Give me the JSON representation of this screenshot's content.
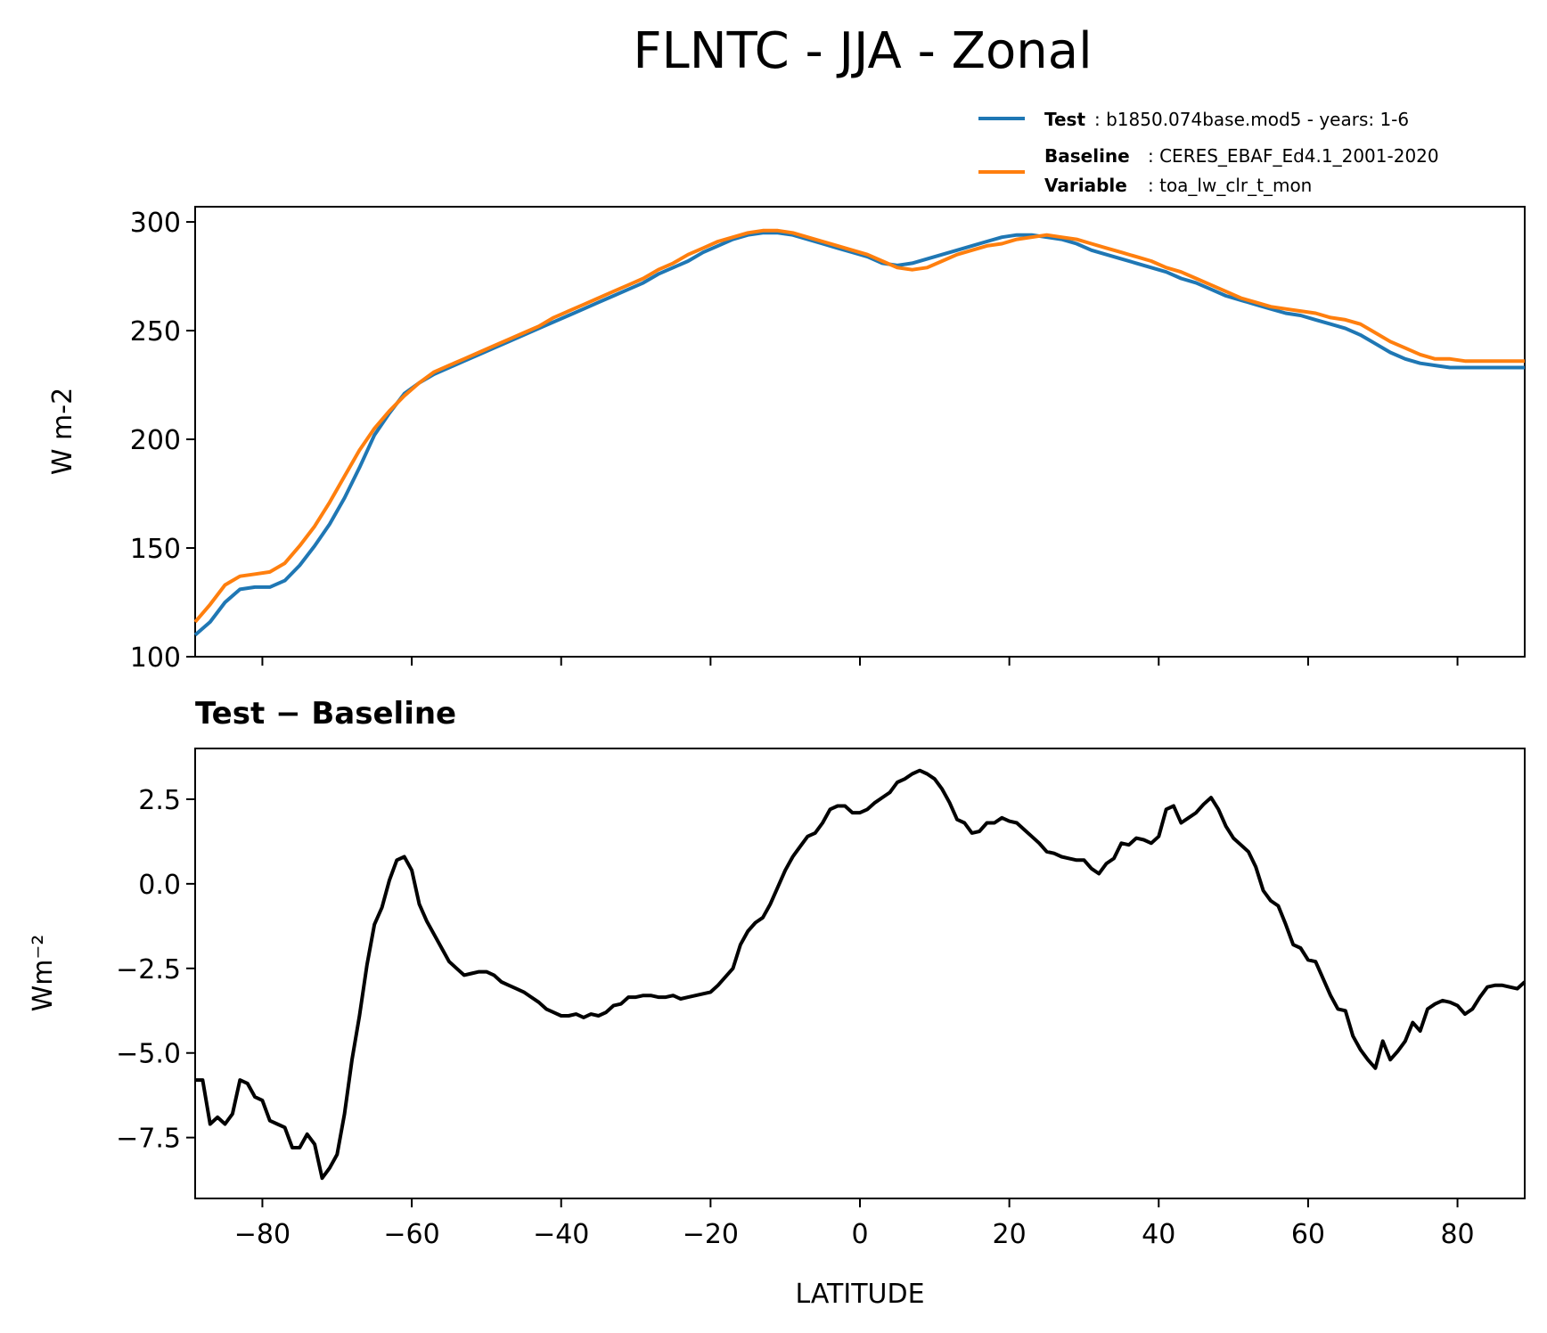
{
  "title": "FLNTC - JJA - Zonal",
  "legend": {
    "test_key": "Test",
    "test_value": ": b1850.074base.mod5 - years: 1-6",
    "baseline_key": "Baseline",
    "baseline_value": ": CERES_EBAF_Ed4.1_2001-2020",
    "variable_key": "Variable",
    "variable_value": ": toa_lw_clr_t_mon"
  },
  "colors": {
    "test": "#1f77b4",
    "baseline": "#ff7f0e",
    "diff": "#000000"
  },
  "chart_data": [
    {
      "type": "line",
      "ylabel": "W m-2",
      "xlim": [
        -89,
        89
      ],
      "ylim": [
        100,
        307
      ],
      "yticks": [
        100,
        150,
        200,
        250,
        300
      ],
      "legend_placement": "top-right",
      "grid": false,
      "series": [
        {
          "name": "Test",
          "x": [
            -89,
            -87,
            -85,
            -83,
            -81,
            -79,
            -77,
            -75,
            -73,
            -71,
            -69,
            -67,
            -65,
            -63,
            -61,
            -59,
            -57,
            -55,
            -53,
            -51,
            -49,
            -47,
            -45,
            -43,
            -41,
            -39,
            -37,
            -35,
            -33,
            -31,
            -29,
            -27,
            -25,
            -23,
            -21,
            -19,
            -17,
            -15,
            -13,
            -11,
            -9,
            -7,
            -5,
            -3,
            -1,
            1,
            3,
            5,
            7,
            9,
            11,
            13,
            15,
            17,
            19,
            21,
            23,
            25,
            27,
            29,
            31,
            33,
            35,
            37,
            39,
            41,
            43,
            45,
            47,
            49,
            51,
            53,
            55,
            57,
            59,
            61,
            63,
            65,
            67,
            69,
            71,
            73,
            75,
            77,
            79,
            81,
            83,
            85,
            87,
            89
          ],
          "y": [
            110,
            116,
            125,
            131,
            132,
            132,
            135,
            142,
            151,
            161,
            173,
            187,
            202,
            212,
            221,
            226,
            230,
            233,
            236,
            239,
            242,
            245,
            248,
            251,
            254,
            257,
            260,
            263,
            266,
            269,
            272,
            276,
            279,
            282,
            286,
            289,
            292,
            294,
            295,
            295,
            294,
            292,
            290,
            288,
            286,
            284,
            281,
            280,
            281,
            283,
            285,
            287,
            289,
            291,
            293,
            294,
            294,
            293,
            292,
            290,
            287,
            285,
            283,
            281,
            279,
            277,
            274,
            272,
            269,
            266,
            264,
            262,
            260,
            258,
            257,
            255,
            253,
            251,
            248,
            244,
            240,
            237,
            235,
            234,
            233,
            233,
            233,
            233,
            233,
            233
          ]
        },
        {
          "name": "Baseline",
          "x": [
            -89,
            -87,
            -85,
            -83,
            -81,
            -79,
            -77,
            -75,
            -73,
            -71,
            -69,
            -67,
            -65,
            -63,
            -61,
            -59,
            -57,
            -55,
            -53,
            -51,
            -49,
            -47,
            -45,
            -43,
            -41,
            -39,
            -37,
            -35,
            -33,
            -31,
            -29,
            -27,
            -25,
            -23,
            -21,
            -19,
            -17,
            -15,
            -13,
            -11,
            -9,
            -7,
            -5,
            -3,
            -1,
            1,
            3,
            5,
            7,
            9,
            11,
            13,
            15,
            17,
            19,
            21,
            23,
            25,
            27,
            29,
            31,
            33,
            35,
            37,
            39,
            41,
            43,
            45,
            47,
            49,
            51,
            53,
            55,
            57,
            59,
            61,
            63,
            65,
            67,
            69,
            71,
            73,
            75,
            77,
            79,
            81,
            83,
            85,
            87,
            89
          ],
          "y": [
            116,
            124,
            133,
            137,
            138,
            139,
            143,
            151,
            160,
            171,
            183,
            195,
            205,
            213,
            220,
            226,
            231,
            234,
            237,
            240,
            243,
            246,
            249,
            252,
            256,
            259,
            262,
            265,
            268,
            271,
            274,
            278,
            281,
            285,
            288,
            291,
            293,
            295,
            296,
            296,
            295,
            293,
            291,
            289,
            287,
            285,
            282,
            279,
            278,
            279,
            282,
            285,
            287,
            289,
            290,
            292,
            293,
            294,
            293,
            292,
            290,
            288,
            286,
            284,
            282,
            279,
            277,
            274,
            271,
            268,
            265,
            263,
            261,
            260,
            259,
            258,
            256,
            255,
            253,
            249,
            245,
            242,
            239,
            237,
            237,
            236,
            236,
            236,
            236,
            236
          ]
        }
      ]
    },
    {
      "type": "line",
      "title": "Test − Baseline",
      "ylabel": "Wm⁻²",
      "xlabel": "LATITUDE",
      "xlim": [
        -89,
        89
      ],
      "ylim": [
        -9.3,
        4.0
      ],
      "yticks": [
        -7.5,
        -5.0,
        -2.5,
        0.0,
        2.5
      ],
      "ytick_labels": [
        "−7.5",
        "−5.0",
        "−2.5",
        "0.0",
        "2.5"
      ],
      "xticks": [
        -80,
        -60,
        -40,
        -20,
        0,
        20,
        40,
        60,
        80
      ],
      "xtick_labels": [
        "−80",
        "−60",
        "−40",
        "−20",
        "0",
        "20",
        "40",
        "60",
        "80"
      ],
      "grid": false,
      "series": [
        {
          "x": [
            -89,
            -88,
            -87,
            -86,
            -85,
            -84,
            -83,
            -82,
            -81,
            -80,
            -79,
            -78,
            -77,
            -76,
            -75,
            -74,
            -73,
            -72,
            -71,
            -70,
            -69,
            -68,
            -67,
            -66,
            -65,
            -64,
            -63,
            -62,
            -61,
            -60,
            -59,
            -58,
            -57,
            -56,
            -55,
            -54,
            -53,
            -52,
            -51,
            -50,
            -49,
            -48,
            -47,
            -46,
            -45,
            -44,
            -43,
            -42,
            -41,
            -40,
            -39,
            -38,
            -37,
            -36,
            -35,
            -34,
            -33,
            -32,
            -31,
            -30,
            -29,
            -28,
            -27,
            -26,
            -25,
            -24,
            -23,
            -22,
            -21,
            -20,
            -19,
            -18,
            -17,
            -16,
            -15,
            -14,
            -13,
            -12,
            -11,
            -10,
            -9,
            -8,
            -7,
            -6,
            -5,
            -4,
            -3,
            -2,
            -1,
            0,
            1,
            2,
            3,
            4,
            5,
            6,
            7,
            8,
            9,
            10,
            11,
            12,
            13,
            14,
            15,
            16,
            17,
            18,
            19,
            20,
            21,
            22,
            23,
            24,
            25,
            26,
            27,
            28,
            29,
            30,
            31,
            32,
            33,
            34,
            35,
            36,
            37,
            38,
            39,
            40,
            41,
            42,
            43,
            44,
            45,
            46,
            47,
            48,
            49,
            50,
            51,
            52,
            53,
            54,
            55,
            56,
            57,
            58,
            59,
            60,
            61,
            62,
            63,
            64,
            65,
            66,
            67,
            68,
            69,
            70,
            71,
            72,
            73,
            74,
            75,
            76,
            77,
            78,
            79,
            80,
            81,
            82,
            83,
            84,
            85,
            86,
            87,
            88,
            89
          ],
          "y": [
            -5.8,
            -5.8,
            -7.1,
            -6.9,
            -7.1,
            -6.8,
            -5.8,
            -5.9,
            -6.3,
            -6.4,
            -7.0,
            -7.1,
            -7.2,
            -7.8,
            -7.8,
            -7.4,
            -7.7,
            -8.7,
            -8.4,
            -8.0,
            -6.8,
            -5.2,
            -3.9,
            -2.4,
            -1.2,
            -0.7,
            0.1,
            0.7,
            0.8,
            0.4,
            -0.6,
            -1.1,
            -1.5,
            -1.9,
            -2.3,
            -2.5,
            -2.7,
            -2.65,
            -2.6,
            -2.6,
            -2.7,
            -2.9,
            -3.0,
            -3.1,
            -3.2,
            -3.35,
            -3.5,
            -3.7,
            -3.8,
            -3.9,
            -3.9,
            -3.85,
            -3.95,
            -3.85,
            -3.9,
            -3.8,
            -3.6,
            -3.55,
            -3.35,
            -3.35,
            -3.3,
            -3.3,
            -3.35,
            -3.35,
            -3.3,
            -3.4,
            -3.35,
            -3.3,
            -3.25,
            -3.2,
            -3.0,
            -2.75,
            -2.5,
            -1.8,
            -1.4,
            -1.15,
            -1.0,
            -0.6,
            -0.1,
            0.4,
            0.8,
            1.1,
            1.4,
            1.5,
            1.8,
            2.2,
            2.3,
            2.3,
            2.1,
            2.1,
            2.2,
            2.4,
            2.55,
            2.7,
            3.0,
            3.1,
            3.25,
            3.35,
            3.25,
            3.1,
            2.8,
            2.4,
            1.9,
            1.8,
            1.5,
            1.55,
            1.8,
            1.8,
            1.95,
            1.85,
            1.8,
            1.6,
            1.4,
            1.2,
            0.95,
            0.9,
            0.8,
            0.75,
            0.7,
            0.7,
            0.45,
            0.3,
            0.6,
            0.75,
            1.2,
            1.15,
            1.35,
            1.3,
            1.2,
            1.4,
            2.2,
            2.3,
            1.8,
            1.95,
            2.1,
            2.35,
            2.55,
            2.2,
            1.7,
            1.35,
            1.15,
            0.95,
            0.5,
            -0.2,
            -0.5,
            -0.65,
            -1.2,
            -1.8,
            -1.9,
            -2.25,
            -2.3,
            -2.8,
            -3.3,
            -3.7,
            -3.75,
            -4.5,
            -4.9,
            -5.2,
            -5.45,
            -4.65,
            -5.2,
            -4.95,
            -4.65,
            -4.1,
            -4.35,
            -3.7,
            -3.55,
            -3.45,
            -3.5,
            -3.6,
            -3.85,
            -3.7,
            -3.35,
            -3.05,
            -3.0,
            -3.0,
            -3.05,
            -3.1,
            -2.9
          ]
        }
      ]
    }
  ]
}
